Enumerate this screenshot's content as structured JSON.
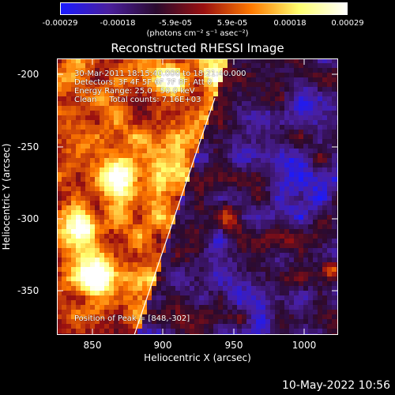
{
  "colorbar": {
    "ticks": [
      "-0.00029",
      "-0.00018",
      "-5.9e-05",
      "5.9e-05",
      "0.00018",
      "0.00029"
    ],
    "unit": "(photons cm⁻² s⁻¹ asec⁻²)",
    "range": [
      -0.00029,
      0.00029
    ],
    "colors": [
      "#1a1aff",
      "#4a1f9e",
      "#2a0a2e",
      "#9a1010",
      "#ff7a00",
      "#ffff70",
      "#ffffff"
    ]
  },
  "image": {
    "title": "Reconstructed RHESSI Image",
    "info_lines": [
      "30-Mar-2011 18:15:40.000 to 18:21:40.000",
      "Detectors: 3F 4F 5F 6F 7F 8F, Att 0",
      "Energy Range: 25.0 - 50.0 keV",
      "Clean     Total counts: 7.16E+03"
    ],
    "peak_label": "Position of Peak = [848,-302]"
  },
  "axes": {
    "xlabel": "Heliocentric X (arcsec)",
    "ylabel": "Heliocentric Y (arcsec)",
    "xticks": [
      "850",
      "900",
      "950",
      "1000"
    ],
    "yticks": [
      "-200",
      "-250",
      "-300",
      "-350"
    ],
    "xrange": [
      828,
      1022
    ],
    "yrange": [
      -380,
      -188
    ]
  },
  "footer": {
    "date": "10-May-2022 10:56"
  }
}
